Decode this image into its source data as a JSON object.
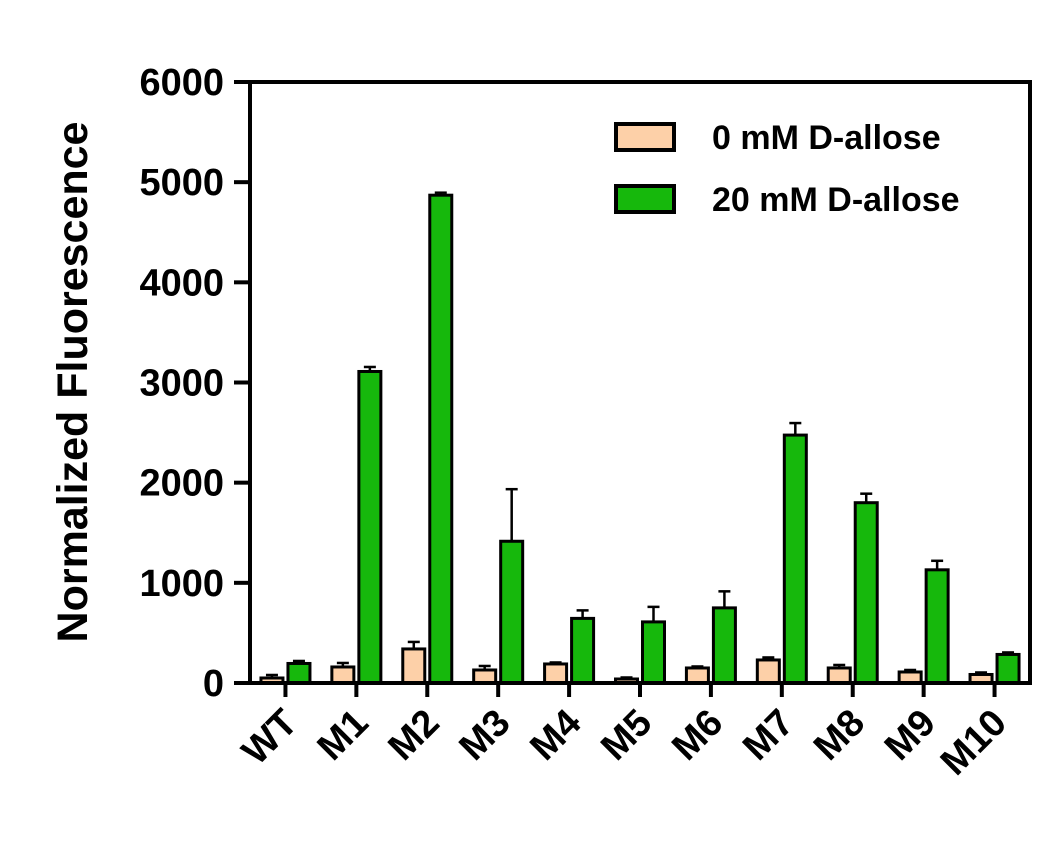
{
  "chart_data": {
    "type": "bar",
    "title": "",
    "xlabel": "",
    "ylabel": "Normalized Fluorescence",
    "ylim": [
      0,
      6000
    ],
    "yticks": [
      0,
      1000,
      2000,
      3000,
      4000,
      5000,
      6000
    ],
    "categories": [
      "WT",
      "M1",
      "M2",
      "M3",
      "M4",
      "M5",
      "M6",
      "M7",
      "M8",
      "M9",
      "M10"
    ],
    "series": [
      {
        "name": "0 mM D-allose",
        "color": "#fdd0a8",
        "values": [
          50,
          160,
          340,
          130,
          190,
          40,
          150,
          230,
          150,
          110,
          85
        ],
        "errors": [
          30,
          40,
          70,
          40,
          15,
          15,
          15,
          25,
          30,
          20,
          20
        ]
      },
      {
        "name": "20 mM D-allose",
        "color": "#16b80c",
        "values": [
          195,
          3110,
          4870,
          1415,
          645,
          610,
          750,
          2475,
          1800,
          1130,
          285
        ],
        "errors": [
          25,
          45,
          25,
          520,
          80,
          150,
          165,
          120,
          90,
          90,
          20
        ]
      }
    ],
    "legend": {
      "position": "top-right"
    },
    "grid": false
  }
}
